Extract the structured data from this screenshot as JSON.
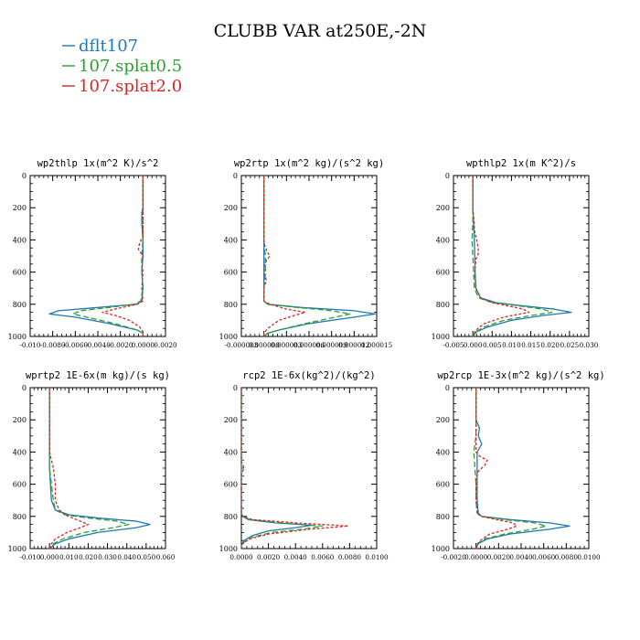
{
  "title": "CLUBB VAR at250E,-2N",
  "legend": [
    {
      "name": "dflt107",
      "color": "#1f77b4"
    },
    {
      "name": "107.splat0.5",
      "color": "#2ca02c"
    },
    {
      "name": "107.splat2.0",
      "color": "#d62728"
    }
  ],
  "chart_data": [
    {
      "type": "line",
      "title": "wp2thlp   1x(m^2 K)/s^2",
      "xlim": [
        -0.01,
        0.002
      ],
      "xticks": [
        -0.01,
        -0.008,
        -0.006,
        -0.004,
        -0.002,
        0.0,
        0.002
      ],
      "xtick_labels": [
        "-0.010",
        "-0.0080",
        "-0.0060",
        "-0.0040",
        "-0.0020",
        "0.0000",
        "0.0020"
      ],
      "ylim": [
        0,
        1000
      ],
      "yticks": [
        0,
        200,
        400,
        600,
        800,
        1000
      ],
      "ytick_labels": [
        "0",
        "200",
        "400",
        "600",
        "800",
        "1000"
      ],
      "y_inverted": true,
      "series": [
        {
          "name": "dflt107",
          "y": [
            0,
            200,
            230,
            300,
            400,
            500,
            600,
            700,
            780,
            800,
            820,
            840,
            860,
            880,
            920,
            960,
            980,
            1000
          ],
          "x": [
            0.0,
            0.0,
            -0.0001,
            -0.0001,
            0.0,
            0.0,
            -0.0001,
            0.0,
            -0.0001,
            -0.0006,
            -0.004,
            -0.0075,
            -0.0083,
            -0.006,
            -0.003,
            -0.0005,
            0.0,
            0.0
          ]
        },
        {
          "name": "107.splat0.5",
          "y": [
            0,
            200,
            300,
            400,
            500,
            600,
            700,
            780,
            800,
            820,
            840,
            860,
            880,
            920,
            960,
            980,
            1000
          ],
          "x": [
            0.0,
            0.0,
            0.0,
            0.0,
            -0.0001,
            -0.0001,
            0.0,
            -0.0002,
            -0.0008,
            -0.003,
            -0.0055,
            -0.0062,
            -0.005,
            -0.0025,
            -0.0005,
            0.0,
            0.0
          ]
        },
        {
          "name": "107.splat2.0",
          "y": [
            0,
            200,
            380,
            420,
            460,
            500,
            540,
            600,
            700,
            780,
            800,
            830,
            850,
            870,
            900,
            940,
            970,
            1000
          ],
          "x": [
            0.0,
            0.0,
            0.0,
            -0.0003,
            -0.0004,
            0.0,
            -0.0001,
            0.0,
            -0.0001,
            0.0,
            -0.0005,
            -0.0025,
            -0.0036,
            -0.0024,
            -0.0012,
            -0.0003,
            0.0,
            0.0
          ]
        }
      ]
    },
    {
      "type": "line",
      "title": "wp2rtp   1x(m^2 kg)/(s^2 kg)",
      "xlim": [
        -3e-06,
        1.5e-05
      ],
      "xticks": [
        -3e-06,
        0.0,
        3e-06,
        6e-06,
        9e-06,
        1.2e-05,
        1.5e-05
      ],
      "xtick_labels": [
        "-0.000003",
        "0.000000",
        "0.000003",
        "0.000006",
        "0.000009",
        "0.000012",
        "0.000015"
      ],
      "ylim": [
        0,
        1000
      ],
      "yticks": [
        0,
        200,
        400,
        600,
        800,
        1000
      ],
      "ytick_labels": [
        "0",
        "200",
        "400",
        "600",
        "800",
        "1000"
      ],
      "y_inverted": true,
      "series": [
        {
          "name": "dflt107",
          "y": [
            0,
            300,
            400,
            500,
            600,
            700,
            780,
            800,
            820,
            840,
            860,
            880,
            920,
            960,
            980,
            1000
          ],
          "x": [
            0.0,
            0.0,
            0.0,
            0.0,
            0.0,
            0.0,
            0.0,
            5e-07,
            5e-06,
            1.2e-05,
            1.48e-05,
            1.2e-05,
            6e-06,
            2e-06,
            5e-07,
            0.0
          ]
        },
        {
          "name": "107.splat0.5",
          "y": [
            0,
            300,
            400,
            500,
            600,
            700,
            780,
            800,
            820,
            840,
            860,
            880,
            920,
            960,
            980,
            1000
          ],
          "x": [
            0.0,
            0.0,
            0.0,
            2e-07,
            2e-07,
            0.0,
            0.0,
            5e-07,
            4.5e-06,
            9e-06,
            1.15e-05,
            9.5e-06,
            5.5e-06,
            2e-06,
            5e-07,
            0.0
          ]
        },
        {
          "name": "107.splat2.0",
          "y": [
            0,
            300,
            420,
            470,
            500,
            530,
            580,
            650,
            700,
            780,
            800,
            830,
            850,
            870,
            900,
            950,
            980,
            1000
          ],
          "x": [
            0.0,
            0.0,
            0.0,
            4e-07,
            8e-07,
            3e-07,
            0.0,
            3e-07,
            0.0,
            0.0,
            8e-07,
            3e-06,
            5.5e-06,
            4e-06,
            2e-06,
            5e-07,
            0.0,
            0.0
          ]
        }
      ]
    },
    {
      "type": "line",
      "title": "wpthlp2   1x(m K^2)/s",
      "xlim": [
        -0.005,
        0.03
      ],
      "xticks": [
        -0.005,
        0.0,
        0.005,
        0.01,
        0.015,
        0.02,
        0.025,
        0.03
      ],
      "xtick_labels": [
        "-0.005",
        "0.000",
        "0.005",
        "0.010",
        "0.015",
        "0.020",
        "0.025",
        "0.030"
      ],
      "ylim": [
        0,
        1000
      ],
      "yticks": [
        0,
        200,
        400,
        600,
        800,
        1000
      ],
      "ytick_labels": [
        "0",
        "200",
        "400",
        "600",
        "800",
        "1000"
      ],
      "y_inverted": true,
      "series": [
        {
          "name": "dflt107",
          "y": [
            0,
            200,
            300,
            400,
            500,
            600,
            700,
            760,
            790,
            810,
            830,
            850,
            870,
            900,
            940,
            970,
            1000
          ],
          "x": [
            0.0,
            0.0,
            0.0002,
            0.0004,
            0.0005,
            0.0006,
            0.0008,
            0.002,
            0.006,
            0.013,
            0.021,
            0.0255,
            0.018,
            0.01,
            0.004,
            0.001,
            0.0
          ]
        },
        {
          "name": "107.splat0.5",
          "y": [
            0,
            200,
            300,
            400,
            500,
            600,
            700,
            760,
            790,
            810,
            830,
            850,
            870,
            900,
            940,
            970,
            1000
          ],
          "x": [
            0.0,
            0.0,
            0.0,
            -0.0002,
            0.0,
            0.0002,
            0.0004,
            0.0015,
            0.005,
            0.012,
            0.018,
            0.0205,
            0.015,
            0.008,
            0.003,
            0.0008,
            0.0
          ]
        },
        {
          "name": "107.splat2.0",
          "y": [
            0,
            200,
            350,
            420,
            480,
            520,
            600,
            700,
            760,
            790,
            810,
            830,
            850,
            880,
            920,
            960,
            1000
          ],
          "x": [
            0.0,
            0.0,
            0.0005,
            0.0012,
            0.0015,
            0.0008,
            0.0005,
            0.0008,
            0.002,
            0.005,
            0.009,
            0.013,
            0.0145,
            0.008,
            0.003,
            0.0008,
            0.0
          ]
        }
      ]
    },
    {
      "type": "line",
      "title": "wprtp2   1E-6x(m kg)/(s kg)",
      "xlim": [
        -0.01,
        0.06
      ],
      "xticks": [
        -0.01,
        0.0,
        0.01,
        0.02,
        0.03,
        0.04,
        0.05,
        0.06
      ],
      "xtick_labels": [
        "-0.010",
        "0.000",
        "0.010",
        "0.020",
        "0.030",
        "0.040",
        "0.050",
        "0.060"
      ],
      "ylim": [
        0,
        1000
      ],
      "yticks": [
        0,
        200,
        400,
        600,
        800,
        1000
      ],
      "ytick_labels": [
        "0",
        "200",
        "400",
        "600",
        "800",
        "1000"
      ],
      "y_inverted": true,
      "series": [
        {
          "name": "dflt107",
          "y": [
            0,
            400,
            500,
            600,
            700,
            760,
            790,
            810,
            830,
            850,
            870,
            900,
            940,
            970,
            1000
          ],
          "x": [
            0.0,
            0.0,
            0.0,
            0.0005,
            0.001,
            0.003,
            0.01,
            0.025,
            0.045,
            0.052,
            0.045,
            0.025,
            0.01,
            0.003,
            0.0
          ]
        },
        {
          "name": "107.splat0.5",
          "y": [
            0,
            400,
            500,
            600,
            700,
            760,
            790,
            810,
            830,
            850,
            870,
            900,
            940,
            970,
            1000
          ],
          "x": [
            0.0,
            0.0,
            0.0,
            0.001,
            0.002,
            0.003,
            0.008,
            0.02,
            0.035,
            0.041,
            0.033,
            0.018,
            0.007,
            0.002,
            0.0
          ]
        },
        {
          "name": "107.splat2.0",
          "y": [
            0,
            400,
            500,
            600,
            700,
            760,
            790,
            820,
            850,
            870,
            900,
            940,
            970,
            1000
          ],
          "x": [
            0.0,
            0.0,
            0.002,
            0.003,
            0.003,
            0.005,
            0.008,
            0.014,
            0.02,
            0.016,
            0.009,
            0.003,
            0.001,
            0.0
          ]
        }
      ]
    },
    {
      "type": "line",
      "title": "rcp2   1E-6x(kg^2)/(kg^2)",
      "xlim": [
        0.0,
        0.01
      ],
      "xticks": [
        0.0,
        0.002,
        0.004,
        0.006,
        0.008,
        0.01
      ],
      "xtick_labels": [
        "0.0000",
        "0.0020",
        "0.0040",
        "0.0060",
        "0.0080",
        "0.0100"
      ],
      "ylim": [
        0,
        1000
      ],
      "yticks": [
        0,
        200,
        400,
        600,
        800,
        1000
      ],
      "ytick_labels": [
        "0",
        "200",
        "400",
        "600",
        "800",
        "1000"
      ],
      "y_inverted": true,
      "series": [
        {
          "name": "dflt107",
          "y": [
            0,
            700,
            780,
            800,
            820,
            840,
            855,
            870,
            890,
            920,
            950,
            980,
            1000
          ],
          "x": [
            0.0,
            0.0,
            0.0,
            0.0001,
            0.0005,
            0.0025,
            0.0052,
            0.004,
            0.002,
            0.0008,
            0.0002,
            0.0,
            0.0
          ]
        },
        {
          "name": "107.splat0.5",
          "y": [
            0,
            700,
            780,
            800,
            820,
            840,
            860,
            880,
            900,
            930,
            960,
            980,
            1000
          ],
          "x": [
            0.0,
            0.0,
            0.0,
            0.0001,
            0.0006,
            0.003,
            0.006,
            0.0045,
            0.0022,
            0.0008,
            0.0002,
            0.0,
            0.0
          ]
        },
        {
          "name": "107.splat2.0",
          "y": [
            0,
            460,
            500,
            540,
            700,
            780,
            800,
            820,
            840,
            860,
            880,
            910,
            940,
            970,
            1000
          ],
          "x": [
            0.0,
            0.0,
            0.0002,
            0.0,
            0.0,
            0.0,
            0.0001,
            0.0008,
            0.004,
            0.0079,
            0.005,
            0.002,
            0.0006,
            0.0001,
            0.0
          ]
        }
      ]
    },
    {
      "type": "line",
      "title": "wp2rcp   1E-3x(m^2 kg)/(s^2 kg)",
      "xlim": [
        -0.002,
        0.01
      ],
      "xticks": [
        -0.002,
        0.0,
        0.002,
        0.004,
        0.006,
        0.008,
        0.01
      ],
      "xtick_labels": [
        "-0.0020",
        "0.0000",
        "0.0020",
        "0.0040",
        "0.0060",
        "0.0080",
        "0.0100"
      ],
      "ylim": [
        0,
        1000
      ],
      "yticks": [
        0,
        200,
        400,
        600,
        800,
        1000
      ],
      "ytick_labels": [
        "0",
        "200",
        "400",
        "600",
        "800",
        "1000"
      ],
      "y_inverted": true,
      "series": [
        {
          "name": "dflt107",
          "y": [
            0,
            200,
            250,
            300,
            350,
            400,
            600,
            700,
            780,
            800,
            820,
            840,
            860,
            880,
            910,
            940,
            970,
            1000
          ],
          "x": [
            0.0,
            0.0,
            0.0003,
            0.0002,
            0.0005,
            0.0001,
            0.0001,
            0.0001,
            0.0002,
            0.0005,
            0.003,
            0.0065,
            0.0083,
            0.0065,
            0.003,
            0.001,
            0.0002,
            0.0
          ]
        },
        {
          "name": "107.splat0.5",
          "y": [
            0,
            200,
            300,
            400,
            600,
            700,
            780,
            800,
            820,
            840,
            860,
            880,
            910,
            940,
            970,
            1000
          ],
          "x": [
            0.0,
            0.0,
            0.0,
            -0.0002,
            0.0,
            0.0,
            0.0001,
            0.0004,
            0.0025,
            0.0052,
            0.0062,
            0.005,
            0.0025,
            0.0008,
            0.0001,
            0.0
          ]
        },
        {
          "name": "107.splat2.0",
          "y": [
            0,
            200,
            400,
            430,
            450,
            480,
            520,
            560,
            700,
            780,
            800,
            820,
            840,
            860,
            880,
            910,
            950,
            980,
            1000
          ],
          "x": [
            0.0,
            0.0,
            0.0,
            0.0004,
            0.001,
            0.0008,
            0.0002,
            0.0,
            0.0,
            0.0001,
            0.0005,
            0.0018,
            0.0033,
            0.0036,
            0.0028,
            0.0012,
            0.0004,
            0.0001,
            0.0
          ]
        }
      ]
    }
  ]
}
